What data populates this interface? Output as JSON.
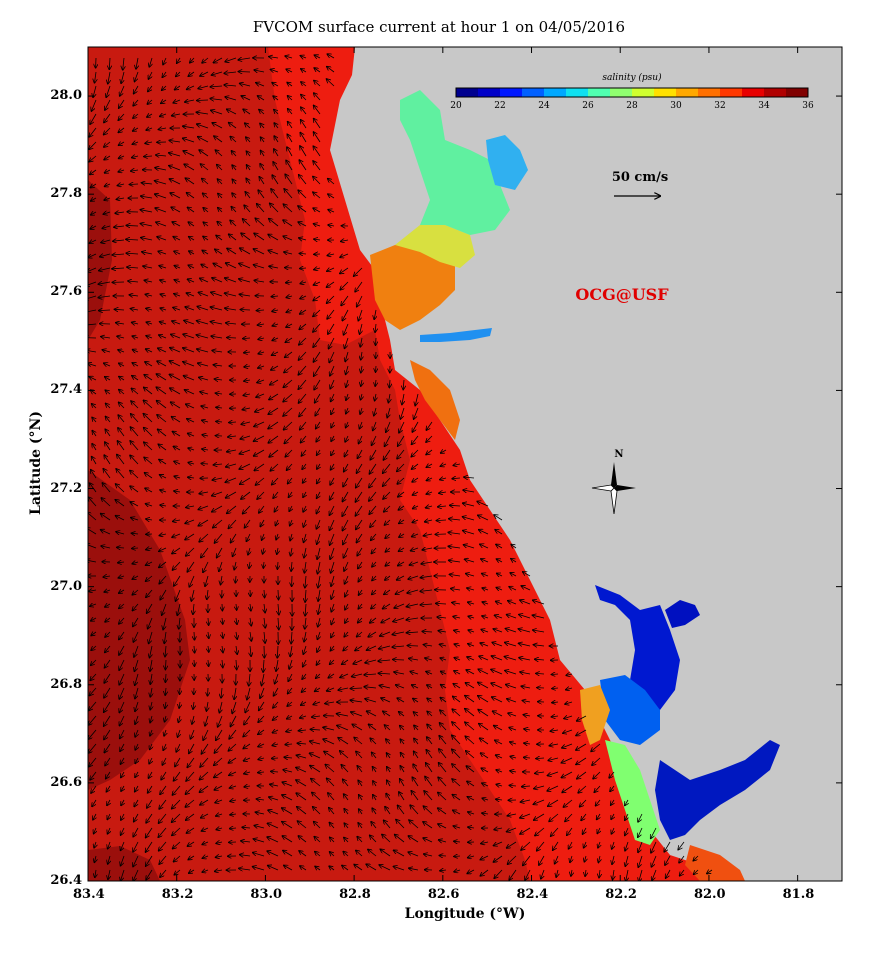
{
  "title": "FVCOM surface current at hour 1 on 04/05/2016",
  "xlabel": "Longitude (°W)",
  "ylabel": "Latitude (°N)",
  "x_ticks": [
    "83.4",
    "83.2",
    "83.0",
    "82.8",
    "82.6",
    "82.4",
    "82.2",
    "82.0",
    "81.8"
  ],
  "y_ticks": [
    "28.0",
    "27.8",
    "27.6",
    "27.4",
    "27.2",
    "27.0",
    "26.8",
    "26.6",
    "26.4"
  ],
  "colorbar": {
    "title": "salinity (psu)",
    "labels": [
      "20",
      "22",
      "24",
      "26",
      "28",
      "30",
      "32",
      "34",
      "36"
    ],
    "colors": [
      "#00008f",
      "#0000c8",
      "#0018ff",
      "#0060ff",
      "#00a8ff",
      "#10e0f0",
      "#50ffb0",
      "#90ff70",
      "#d0ff30",
      "#ffe000",
      "#ffa800",
      "#ff7000",
      "#ff3800",
      "#e80000",
      "#b00000",
      "#800000"
    ]
  },
  "scale_arrow_label": "50 cm/s",
  "watermark": "OCG@USF",
  "compass_label": "N",
  "colors": {
    "land": "#c8c8c8",
    "sea_dark": "#9b0f0c",
    "sea_mid": "#c81a10",
    "sea_bright": "#ee1d10",
    "watermark": "#e00000"
  },
  "chart_data": {
    "type": "map",
    "variable": "salinity (psu)",
    "xlim": [
      83.4,
      81.7
    ],
    "ylim": [
      26.4,
      28.1
    ],
    "colorbar_range": [
      20,
      36
    ]
  }
}
